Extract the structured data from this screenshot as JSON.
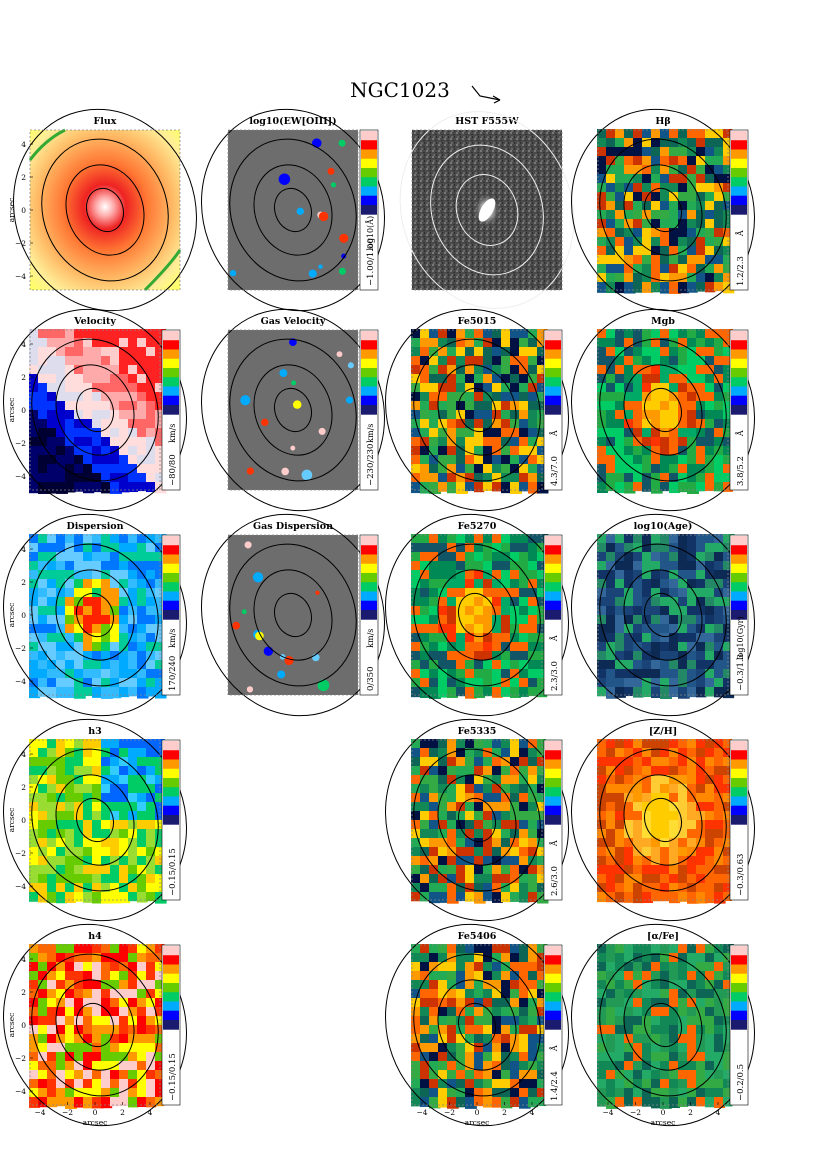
{
  "figure": {
    "galaxy": "NGC1023",
    "arrow": "arrow-icon",
    "axis_label": "arcsec",
    "x_ticks": [
      "−4",
      "−2",
      "0",
      "2",
      "4"
    ],
    "y_ticks": [
      "4",
      "2",
      "0",
      "−2",
      "−4"
    ],
    "colorscale": [
      "#1a1a6e",
      "#0000ff",
      "#00aaff",
      "#00cc66",
      "#66cc00",
      "#ffff00",
      "#ff9900",
      "#ff0000",
      "#ffcccc"
    ],
    "panels": [
      {
        "id": "flux",
        "col": 0,
        "row": 0,
        "title": "Flux",
        "range": "",
        "unit": "",
        "style": "flux"
      },
      {
        "id": "ew",
        "col": 1,
        "row": 0,
        "title": "log10(EW[OIII])",
        "range": "−1.00/1.00",
        "unit": "log10(Å)",
        "style": "gas"
      },
      {
        "id": "hst",
        "col": 2,
        "row": 0,
        "title": "HST F555W",
        "range": "",
        "unit": "",
        "style": "hst"
      },
      {
        "id": "hbeta",
        "col": 3,
        "row": 0,
        "title": "Hβ",
        "range": "1.2/2.3",
        "unit": "Å",
        "style": "index"
      },
      {
        "id": "velocity",
        "col": 0,
        "row": 1,
        "title": "Velocity",
        "range": "−80/80",
        "unit": "km/s",
        "style": "velocity"
      },
      {
        "id": "gasvel",
        "col": 1,
        "row": 1,
        "title": "Gas Velocity",
        "range": "−230/230",
        "unit": "km/s",
        "style": "gas"
      },
      {
        "id": "fe5015",
        "col": 2,
        "row": 1,
        "title": "Fe5015",
        "range": "4.3/7.0",
        "unit": "Å",
        "style": "index"
      },
      {
        "id": "mgb",
        "col": 3,
        "row": 1,
        "title": "Mgb",
        "range": "3.8/5.2",
        "unit": "Å",
        "style": "mgb"
      },
      {
        "id": "dispersion",
        "col": 0,
        "row": 2,
        "title": "Dispersion",
        "range": "170/240",
        "unit": "km/s",
        "style": "dispersion"
      },
      {
        "id": "gasdisp",
        "col": 1,
        "row": 2,
        "title": "Gas Dispersion",
        "range": "0/350",
        "unit": "km/s",
        "style": "gas"
      },
      {
        "id": "fe5270",
        "col": 2,
        "row": 2,
        "title": "Fe5270",
        "range": "2.3/3.0",
        "unit": "Å",
        "style": "mgb"
      },
      {
        "id": "age",
        "col": 3,
        "row": 2,
        "title": "log10(Age)",
        "range": "−0.3/1.3",
        "unit": "log10(Gyr)",
        "style": "age"
      },
      {
        "id": "h3",
        "col": 0,
        "row": 3,
        "title": "h3",
        "range": "−0.15/0.15",
        "unit": "",
        "style": "h3"
      },
      {
        "id": "fe5335",
        "col": 2,
        "row": 3,
        "title": "Fe5335",
        "range": "2.6/3.0",
        "unit": "Å",
        "style": "index"
      },
      {
        "id": "zh",
        "col": 3,
        "row": 3,
        "title": "[Z/H]",
        "range": "−0.3/0.63",
        "unit": "",
        "style": "zh"
      },
      {
        "id": "h4",
        "col": 0,
        "row": 4,
        "title": "h4",
        "range": "−0.15/0.15",
        "unit": "",
        "style": "h4"
      },
      {
        "id": "fe5406",
        "col": 2,
        "row": 4,
        "title": "Fe5406",
        "range": "1.4/2.4",
        "unit": "Å",
        "style": "index"
      },
      {
        "id": "alphafe",
        "col": 3,
        "row": 4,
        "title": "[α/Fe]",
        "range": "−0.2/0.5",
        "unit": "",
        "style": "alpha"
      }
    ]
  }
}
